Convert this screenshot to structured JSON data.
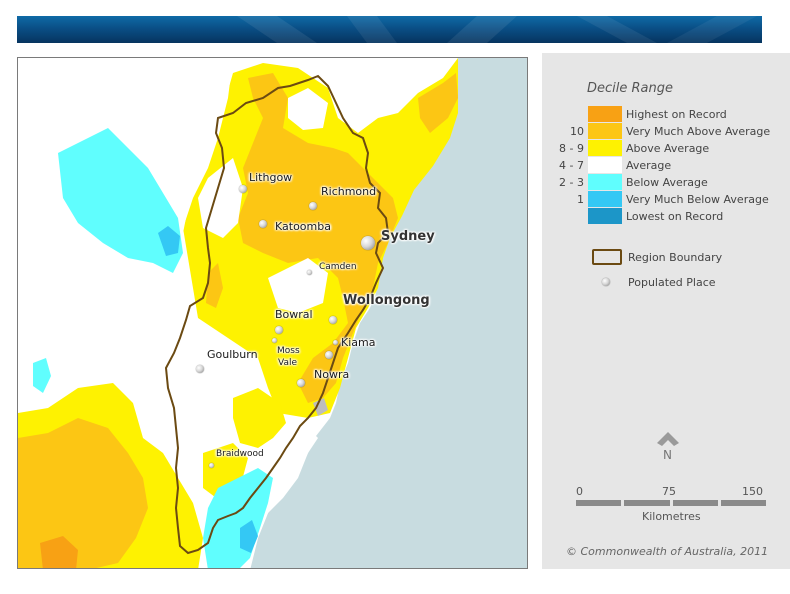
{
  "legend": {
    "title": "Decile Range",
    "rows": [
      {
        "range": "",
        "label": "Highest on Record",
        "color": "#f8a114"
      },
      {
        "range": "10",
        "label": "Very Much Above Average",
        "color": "#fcc614"
      },
      {
        "range": "8 - 9",
        "label": "Above Average",
        "color": "#fef201"
      },
      {
        "range": "4 - 7",
        "label": "Average",
        "color": "#ffffff"
      },
      {
        "range": "2 - 3",
        "label": "Below Average",
        "color": "#60fefe"
      },
      {
        "range": "1",
        "label": "Very Much Below Average",
        "color": "#34c8f4"
      },
      {
        "range": "",
        "label": "Lowest on Record",
        "color": "#1c96c8"
      }
    ],
    "region_boundary": "Region Boundary",
    "populated_place": "Populated Place",
    "north": "N",
    "scale": {
      "ticks": [
        "0",
        "75",
        "150"
      ],
      "unit": "Kilometres"
    },
    "copyright": "© Commonwealth of Australia, 2011"
  },
  "map": {
    "places": [
      {
        "name": "Lithgow",
        "class": "normal"
      },
      {
        "name": "Richmond",
        "class": "normal"
      },
      {
        "name": "Katoomba",
        "class": "normal"
      },
      {
        "name": "Sydney",
        "class": "major"
      },
      {
        "name": "Camden",
        "class": "small"
      },
      {
        "name": "Wollongong",
        "class": "major"
      },
      {
        "name": "Bowral",
        "class": "normal"
      },
      {
        "name": "Kiama",
        "class": "normal"
      },
      {
        "name": "Goulburn",
        "class": "normal"
      },
      {
        "name": "Moss",
        "class": "small"
      },
      {
        "name": "Vale",
        "class": "small"
      },
      {
        "name": "Nowra",
        "class": "normal"
      },
      {
        "name": "Braidwood",
        "class": "small"
      }
    ],
    "colors": {
      "ocean": "#c8dce0",
      "boundary": "#6b4a12"
    }
  }
}
